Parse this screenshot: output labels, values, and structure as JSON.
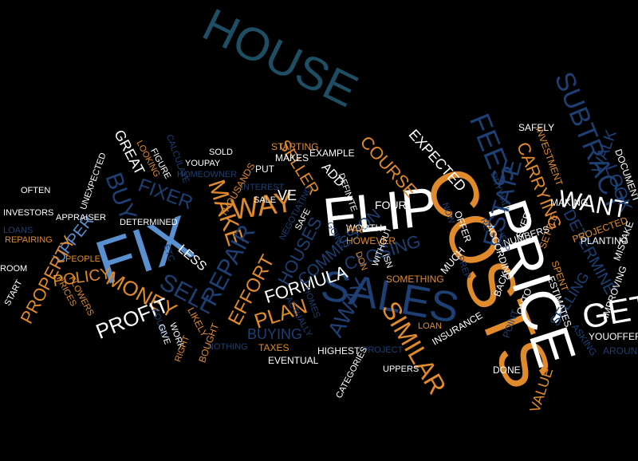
{
  "colors": {
    "background": "#000000",
    "white": "#ffffff",
    "orange": "#e08a2c",
    "blue": "#1e3f73",
    "teal": "#1d4e63",
    "light_blue": "#5a8fd0"
  },
  "cloud": {
    "words": [
      {
        "text": "HOUSE",
        "color": "teal"
      },
      {
        "text": "SUBTRACT",
        "color": "blue"
      },
      {
        "text": "FLIP",
        "color": "white"
      },
      {
        "text": "COSTS",
        "color": "orange"
      },
      {
        "text": "PRICE",
        "color": "white"
      },
      {
        "text": "FIX",
        "color": "light_blue"
      },
      {
        "text": "SALES",
        "color": "blue"
      },
      {
        "text": "SIMILAR",
        "color": "orange"
      },
      {
        "text": "GET",
        "color": "white"
      },
      {
        "text": "WANT",
        "color": "white"
      },
      {
        "text": "FEES",
        "color": "blue"
      },
      {
        "text": "ESTATE",
        "color": "blue"
      },
      {
        "text": "EXPECTED",
        "color": "white"
      },
      {
        "text": "COURSE",
        "color": "orange"
      },
      {
        "text": "SELLER",
        "color": "orange"
      },
      {
        "text": "MAKE",
        "color": "orange"
      },
      {
        "text": "WAY",
        "color": "orange"
      },
      {
        "text": "BUY",
        "color": "blue"
      },
      {
        "text": "FIXER",
        "color": "blue"
      },
      {
        "text": "UPPER",
        "color": "light_blue"
      },
      {
        "text": "PROPERTY",
        "color": "orange"
      },
      {
        "text": "POLICY",
        "color": "orange"
      },
      {
        "text": "MONEY",
        "color": "orange"
      },
      {
        "text": "PROFIT",
        "color": "white"
      },
      {
        "text": "SELL",
        "color": "blue"
      },
      {
        "text": "REPAIR",
        "color": "blue"
      },
      {
        "text": "EFFORT",
        "color": "orange"
      },
      {
        "text": "FORMULA",
        "color": "white"
      },
      {
        "text": "PLAN",
        "color": "orange"
      },
      {
        "text": "AWAY",
        "color": "blue"
      },
      {
        "text": "BUYING",
        "color": "blue"
      },
      {
        "text": "COMMISSION",
        "color": "blue"
      },
      {
        "text": "CLOSING",
        "color": "blue"
      },
      {
        "text": "HOUSES",
        "color": "blue"
      },
      {
        "text": "VE",
        "color": "white"
      },
      {
        "text": "ADD",
        "color": "white"
      },
      {
        "text": "GREAT",
        "color": "white"
      },
      {
        "text": "CARRYING",
        "color": "orange"
      },
      {
        "text": "DETERMINE",
        "color": "blue"
      },
      {
        "text": "SELLING",
        "color": "blue"
      },
      {
        "text": "WALK",
        "color": "blue"
      },
      {
        "text": "LOOK",
        "color": "blue"
      },
      {
        "text": "VALUE",
        "color": "orange"
      },
      {
        "text": "LESS",
        "color": "white"
      },
      {
        "text": "THOUSANDS",
        "color": "orange"
      },
      {
        "text": "STARTING",
        "color": "orange"
      },
      {
        "text": "MAKES",
        "color": "white"
      },
      {
        "text": "EXAMPLE",
        "color": "white"
      },
      {
        "text": "WORTH",
        "color": "white"
      },
      {
        "text": "HOWEVER",
        "color": "orange"
      },
      {
        "text": "FOUR",
        "color": "white"
      },
      {
        "text": "SAFELY",
        "color": "white"
      },
      {
        "text": "INVESTMENT",
        "color": "orange"
      },
      {
        "text": "SETTLE",
        "color": "orange"
      },
      {
        "text": "MAKING",
        "color": "white"
      },
      {
        "text": "NUMBERS",
        "color": "white"
      },
      {
        "text": "EVER",
        "color": "white"
      },
      {
        "text": "DRYWALL",
        "color": "blue"
      },
      {
        "text": "PROJECTED",
        "color": "orange"
      },
      {
        "text": "PLANTING",
        "color": "white"
      },
      {
        "text": "MISTAKE",
        "color": "white"
      },
      {
        "text": "DOCUMENT",
        "color": "white"
      },
      {
        "text": "IMPROVING",
        "color": "white"
      },
      {
        "text": "ESTIMATES",
        "color": "white"
      },
      {
        "text": "SPENT",
        "color": "orange"
      },
      {
        "text": "ASKING",
        "color": "blue"
      },
      {
        "text": "YOUOFFER",
        "color": "white"
      },
      {
        "text": "AROUND",
        "color": "blue"
      },
      {
        "text": "POINT",
        "color": "blue"
      },
      {
        "text": "ONTO",
        "color": "white"
      },
      {
        "text": "BACK",
        "color": "white"
      },
      {
        "text": "ACCORDING",
        "color": "white"
      },
      {
        "text": "HELP",
        "color": "blue"
      },
      {
        "text": "RE",
        "color": "blue"
      },
      {
        "text": "OFFER",
        "color": "white"
      },
      {
        "text": "PREP",
        "color": "blue"
      },
      {
        "text": "NOW",
        "color": "blue"
      },
      {
        "text": "MUCH",
        "color": "white"
      },
      {
        "text": "ISN",
        "color": "white"
      },
      {
        "text": "WITHOUT",
        "color": "white"
      },
      {
        "text": "PAY",
        "color": "orange"
      },
      {
        "text": "DON",
        "color": "orange"
      },
      {
        "text": "SOMETHING",
        "color": "orange"
      },
      {
        "text": "LOAN",
        "color": "orange"
      },
      {
        "text": "INSURANCE",
        "color": "white"
      },
      {
        "text": "DONE",
        "color": "white"
      },
      {
        "text": "UPPERS",
        "color": "white"
      },
      {
        "text": "PROJECT",
        "color": "blue"
      },
      {
        "text": "HIGHEST",
        "color": "white"
      },
      {
        "text": "CATEGORIES",
        "color": "white"
      },
      {
        "text": "EVENTUAL",
        "color": "white"
      },
      {
        "text": "TAXES",
        "color": "orange"
      },
      {
        "text": "NOTHING",
        "color": "blue"
      },
      {
        "text": "HOMES",
        "color": "blue"
      },
      {
        "text": "ACTUALLY",
        "color": "blue"
      },
      {
        "text": "SALE",
        "color": "white"
      },
      {
        "text": "NEGOTIATING",
        "color": "blue"
      },
      {
        "text": "SAFE",
        "color": "white"
      },
      {
        "text": "GOING",
        "color": "blue"
      },
      {
        "text": "INTEREST",
        "color": "blue"
      },
      {
        "text": "PUT",
        "color": "white"
      },
      {
        "text": "SOLD",
        "color": "white"
      },
      {
        "text": "YOUPAY",
        "color": "white"
      },
      {
        "text": "HOMEOWNER",
        "color": "blue"
      },
      {
        "text": "CALCULATE",
        "color": "blue"
      },
      {
        "text": "FIGURE",
        "color": "white"
      },
      {
        "text": "LOOKING",
        "color": "orange"
      },
      {
        "text": "UNEXPECTED",
        "color": "white"
      },
      {
        "text": "DETERMINED",
        "color": "white"
      },
      {
        "text": "OFTEN",
        "color": "white"
      },
      {
        "text": "INVESTORS",
        "color": "white"
      },
      {
        "text": "APPRAISER",
        "color": "white"
      },
      {
        "text": "LOANS",
        "color": "blue"
      },
      {
        "text": "REPAIRING",
        "color": "orange"
      },
      {
        "text": "ROOM",
        "color": "white"
      },
      {
        "text": "START",
        "color": "white"
      },
      {
        "text": "PEOPLE",
        "color": "orange"
      },
      {
        "text": "PRICES",
        "color": "orange"
      },
      {
        "text": "FLOWERS",
        "color": "orange"
      },
      {
        "text": "ETC",
        "color": "blue"
      },
      {
        "text": "FOUND",
        "color": "blue"
      },
      {
        "text": "GIVE",
        "color": "white"
      },
      {
        "text": "WORK",
        "color": "white"
      },
      {
        "text": "LIKELY",
        "color": "orange"
      },
      {
        "text": "BOUGHT",
        "color": "orange"
      },
      {
        "text": "RIGHT",
        "color": "orange"
      },
      {
        "text": "DEFINITE",
        "color": "white"
      }
    ]
  }
}
